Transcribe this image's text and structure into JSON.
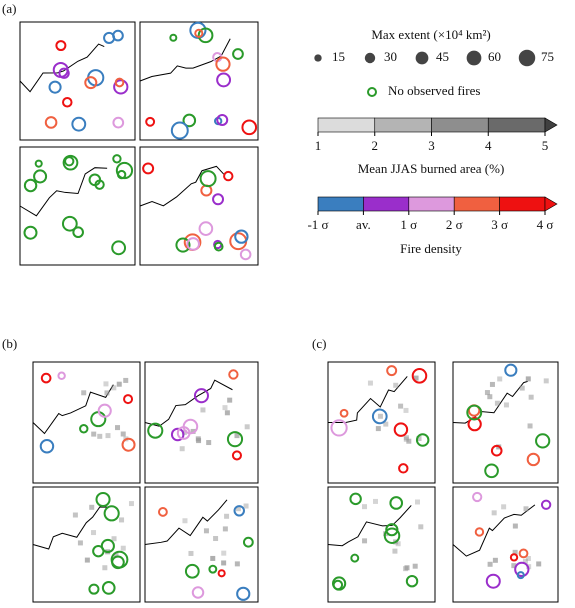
{
  "panels": [
    "(a)",
    "(b)",
    "(c)"
  ],
  "size_legend": {
    "title": "Max extent (×10⁴ km²)",
    "sizes": [
      15,
      30,
      45,
      60,
      75
    ]
  },
  "no_fire": {
    "label": "No observed fires",
    "color": "#2a9a2a"
  },
  "burned_area": {
    "label": "Mean JJAS burned area (%)",
    "ticks": [
      1,
      2,
      3,
      4,
      5
    ],
    "colors": [
      "#dcdcdc",
      "#b4b4b4",
      "#8e8e8e",
      "#6a6a6a",
      "#404040"
    ]
  },
  "fire_density": {
    "label": "Fire density",
    "ticks": [
      "-1 σ",
      "av.",
      "1 σ",
      "2 σ",
      "3 σ",
      "4 σ"
    ],
    "colors": [
      "#3a7ebf",
      "#9a2ecb",
      "#dd99dd",
      "#f06040",
      "#ee1111",
      "#ee1111"
    ]
  }
}
